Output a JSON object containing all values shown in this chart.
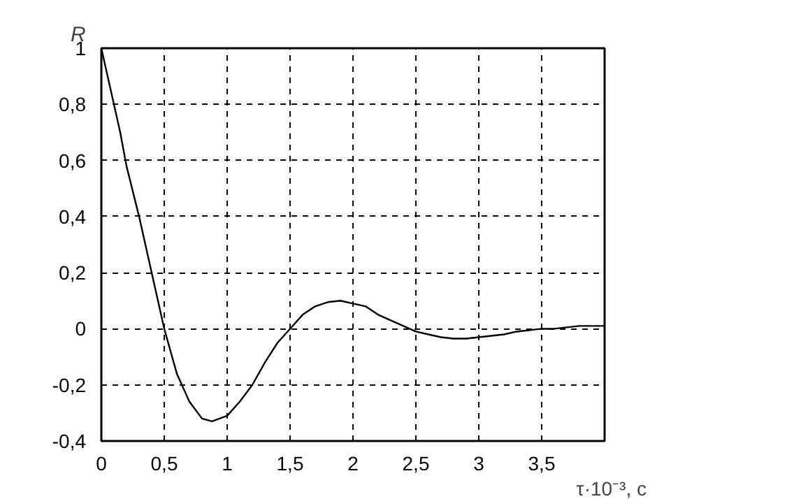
{
  "chart_data": {
    "type": "line",
    "xlabel": "τ·10⁻³, c",
    "ylabel": "R",
    "x": [
      0,
      0.05,
      0.1,
      0.15,
      0.2,
      0.3,
      0.4,
      0.5,
      0.6,
      0.7,
      0.8,
      0.88,
      1.0,
      1.1,
      1.2,
      1.3,
      1.4,
      1.5,
      1.6,
      1.7,
      1.8,
      1.9,
      2.0,
      2.1,
      2.2,
      2.3,
      2.4,
      2.5,
      2.6,
      2.7,
      2.8,
      2.9,
      3.0,
      3.1,
      3.2,
      3.3,
      3.4,
      3.5,
      3.6,
      3.7,
      3.8,
      3.9,
      4.0
    ],
    "series": [
      {
        "color": "#000000",
        "values": [
          1,
          0.9,
          0.8,
          0.7,
          0.58,
          0.4,
          0.2,
          0.0,
          -0.16,
          -0.26,
          -0.32,
          -0.33,
          -0.31,
          -0.26,
          -0.2,
          -0.12,
          -0.05,
          0.0,
          0.05,
          0.08,
          0.095,
          0.1,
          0.09,
          0.08,
          0.05,
          0.03,
          0.01,
          -0.01,
          -0.02,
          -0.03,
          -0.035,
          -0.035,
          -0.03,
          -0.025,
          -0.02,
          -0.01,
          -0.005,
          0.0,
          0.0,
          0.005,
          0.01,
          0.01,
          0.01
        ]
      }
    ],
    "xlim": [
      0,
      4
    ],
    "ylim": [
      -0.4,
      1
    ],
    "xticks": [
      0,
      {
        "value": 0.5,
        "label": "0,5"
      },
      1,
      {
        "value": 1.5,
        "label": "1,5"
      },
      2,
      {
        "value": 2.5,
        "label": "2,5"
      },
      3,
      {
        "value": 3.5,
        "label": "3,5"
      },
      {
        "value": 4,
        "label": null
      }
    ],
    "yticks": [
      {
        "value": -0.4,
        "label": "-0,4"
      },
      {
        "value": -0.2,
        "label": "-0,2"
      },
      0,
      {
        "value": 0.2,
        "label": "0,2"
      },
      {
        "value": 0.4,
        "label": "0,4"
      },
      {
        "value": 0.6,
        "label": "0,6"
      },
      {
        "value": 0.8,
        "label": "0,8"
      },
      1
    ],
    "grid": true,
    "line_style": "solid",
    "marker": "none"
  }
}
